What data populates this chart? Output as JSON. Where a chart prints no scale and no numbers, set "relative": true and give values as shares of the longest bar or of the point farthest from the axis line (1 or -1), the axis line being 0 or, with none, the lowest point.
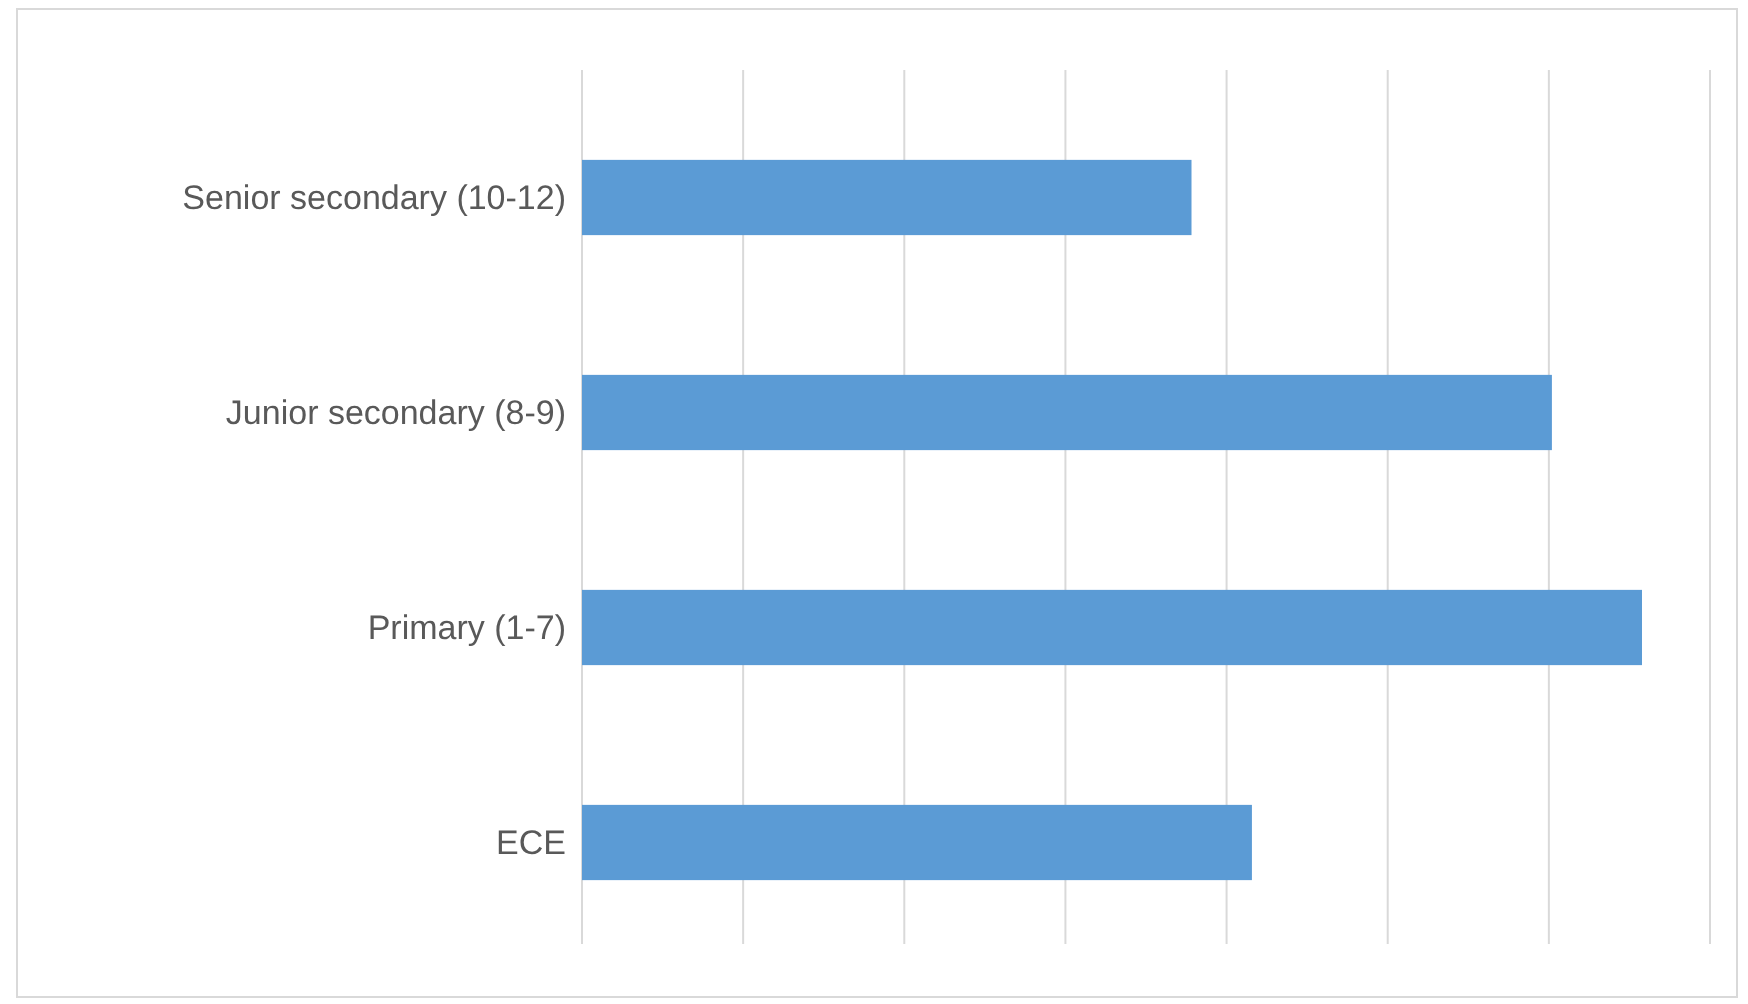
{
  "chart_data": {
    "type": "bar",
    "orientation": "horizontal",
    "relative": true,
    "categories": [
      "Senior secondary (10-12)",
      "Junior secondary (8-9)",
      "Primary (1-7)",
      "ECE"
    ],
    "values": [
      0.575,
      0.915,
      1,
      0.632
    ],
    "color": "#5b9bd5",
    "grid": "x"
  }
}
